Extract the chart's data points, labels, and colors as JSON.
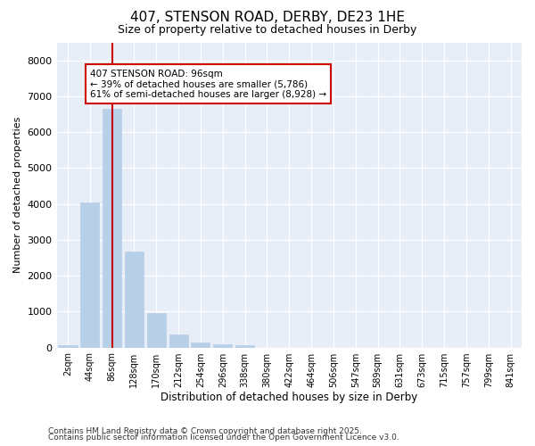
{
  "title1": "407, STENSON ROAD, DERBY, DE23 1HE",
  "title2": "Size of property relative to detached houses in Derby",
  "xlabel": "Distribution of detached houses by size in Derby",
  "ylabel": "Number of detached properties",
  "categories": [
    "2sqm",
    "44sqm",
    "86sqm",
    "128sqm",
    "170sqm",
    "212sqm",
    "254sqm",
    "296sqm",
    "338sqm",
    "380sqm",
    "422sqm",
    "464sqm",
    "506sqm",
    "547sqm",
    "589sqm",
    "631sqm",
    "673sqm",
    "715sqm",
    "757sqm",
    "799sqm",
    "841sqm"
  ],
  "values": [
    60,
    4050,
    6650,
    2680,
    970,
    350,
    145,
    100,
    60,
    0,
    0,
    0,
    0,
    0,
    0,
    0,
    0,
    0,
    0,
    0,
    0
  ],
  "bar_color": "#b8cfe8",
  "bar_edge_color": "#b8cfe8",
  "vline_x": 2,
  "vline_color": "#cc0000",
  "annotation_text": "407 STENSON ROAD: 96sqm\n← 39% of detached houses are smaller (5,786)\n61% of semi-detached houses are larger (8,928) →",
  "annotation_box_color": "#cc0000",
  "ylim": [
    0,
    8500
  ],
  "yticks": [
    0,
    1000,
    2000,
    3000,
    4000,
    5000,
    6000,
    7000,
    8000
  ],
  "bg_color": "#e8eef8",
  "grid_color": "#ffffff",
  "footer1": "Contains HM Land Registry data © Crown copyright and database right 2025.",
  "footer2": "Contains public sector information licensed under the Open Government Licence v3.0."
}
